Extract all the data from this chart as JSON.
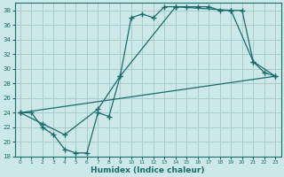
{
  "title": "",
  "xlabel": "Humidex (Indice chaleur)",
  "ylabel": "",
  "background_color": "#cce8e8",
  "grid_color": "#aacccc",
  "line_color": "#1a6b6b",
  "ylim": [
    18,
    39
  ],
  "xlim": [
    -0.5,
    23.5
  ],
  "yticks": [
    18,
    20,
    22,
    24,
    26,
    28,
    30,
    32,
    34,
    36,
    38
  ],
  "xticks": [
    0,
    1,
    2,
    3,
    4,
    5,
    6,
    7,
    8,
    9,
    10,
    11,
    12,
    13,
    14,
    15,
    16,
    17,
    18,
    19,
    20,
    21,
    22,
    23
  ],
  "series1_x": [
    0,
    1,
    2,
    3,
    4,
    5,
    6,
    7,
    8,
    9,
    10,
    11,
    12,
    13,
    14,
    15,
    16,
    17,
    18,
    19,
    20,
    21,
    22,
    23
  ],
  "series1_y": [
    24,
    24,
    22,
    21,
    19,
    18.5,
    18.5,
    24,
    23.5,
    29,
    37,
    37.5,
    37,
    38.5,
    38.5,
    38.5,
    38.5,
    38.5,
    38,
    38,
    38,
    31,
    29.5,
    29
  ],
  "series2_x": [
    0,
    2,
    4,
    7,
    9,
    14,
    19,
    21,
    23
  ],
  "series2_y": [
    24,
    22.5,
    21,
    24.5,
    29,
    38.5,
    38,
    31,
    29
  ],
  "series3_x": [
    0,
    23
  ],
  "series3_y": [
    24,
    29
  ]
}
